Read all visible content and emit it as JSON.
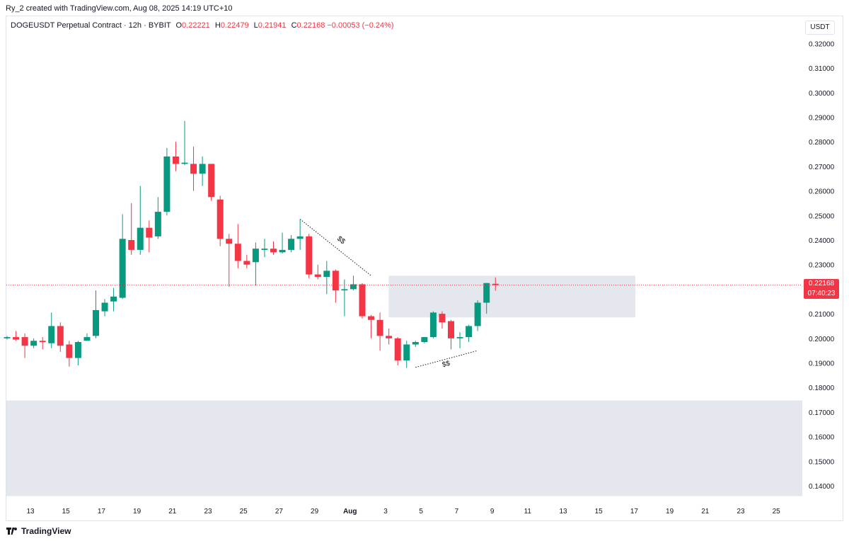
{
  "header": {
    "credit": "Ry_2 created with TradingView.com, Aug 08, 2025 14:19 UTC+10",
    "symbol": "DOGEUSDT Perpetual Contract · 12h · BYBIT",
    "open_label": "O",
    "open": "0.22221",
    "high_label": "H",
    "high": "0.22479",
    "low_label": "L",
    "low": "0.21941",
    "close_label": "C",
    "close": "0.22168",
    "change": "−0.00053 (−0.24%)"
  },
  "axis": {
    "currency": "USDT"
  },
  "last_price": {
    "value": "0.22168",
    "countdown": "07:40:23"
  },
  "footer": {
    "brand": "TradingView"
  },
  "colors": {
    "up": "#089981",
    "down": "#f23645",
    "zone": "#e0e3eb",
    "grid": "#ffffff"
  },
  "chart_data": {
    "type": "candlestick",
    "timeframe": "12h",
    "y_ticks": [
      "0.32000",
      "0.31000",
      "0.30000",
      "0.29000",
      "0.28000",
      "0.27000",
      "0.26000",
      "0.25000",
      "0.24000",
      "0.23000",
      "0.21000",
      "0.20000",
      "0.19000",
      "0.18000",
      "0.17000",
      "0.16000",
      "0.15000",
      "0.14000"
    ],
    "x_ticks": [
      "13",
      "15",
      "17",
      "19",
      "21",
      "23",
      "25",
      "27",
      "29",
      "Aug",
      "3",
      "5",
      "7",
      "9",
      "11",
      "13",
      "15",
      "17",
      "19",
      "21",
      "23",
      "25"
    ],
    "ylim": [
      0.1355,
      0.3245
    ],
    "candles": [
      {
        "o": 0.2,
        "h": 0.201,
        "l": 0.1995,
        "c": 0.2005
      },
      {
        "o": 0.2005,
        "h": 0.203,
        "l": 0.199,
        "c": 0.1995
      },
      {
        "o": 0.2005,
        "h": 0.202,
        "l": 0.192,
        "c": 0.197
      },
      {
        "o": 0.197,
        "h": 0.2,
        "l": 0.196,
        "c": 0.199
      },
      {
        "o": 0.199,
        "h": 0.2005,
        "l": 0.1955,
        "c": 0.1985
      },
      {
        "o": 0.198,
        "h": 0.2105,
        "l": 0.196,
        "c": 0.205
      },
      {
        "o": 0.205,
        "h": 0.2065,
        "l": 0.1945,
        "c": 0.197
      },
      {
        "o": 0.1975,
        "h": 0.199,
        "l": 0.1885,
        "c": 0.192
      },
      {
        "o": 0.192,
        "h": 0.199,
        "l": 0.189,
        "c": 0.1985
      },
      {
        "o": 0.199,
        "h": 0.202,
        "l": 0.199,
        "c": 0.2005
      },
      {
        "o": 0.201,
        "h": 0.2195,
        "l": 0.2,
        "c": 0.2115
      },
      {
        "o": 0.211,
        "h": 0.216,
        "l": 0.209,
        "c": 0.2145
      },
      {
        "o": 0.215,
        "h": 0.2205,
        "l": 0.211,
        "c": 0.217
      },
      {
        "o": 0.2165,
        "h": 0.2505,
        "l": 0.216,
        "c": 0.2405
      },
      {
        "o": 0.24,
        "h": 0.255,
        "l": 0.234,
        "c": 0.236
      },
      {
        "o": 0.236,
        "h": 0.262,
        "l": 0.234,
        "c": 0.245
      },
      {
        "o": 0.245,
        "h": 0.248,
        "l": 0.235,
        "c": 0.241
      },
      {
        "o": 0.2415,
        "h": 0.2575,
        "l": 0.2405,
        "c": 0.2515
      },
      {
        "o": 0.2515,
        "h": 0.2775,
        "l": 0.25,
        "c": 0.274
      },
      {
        "o": 0.274,
        "h": 0.28,
        "l": 0.268,
        "c": 0.271
      },
      {
        "o": 0.271,
        "h": 0.2885,
        "l": 0.2705,
        "c": 0.2715
      },
      {
        "o": 0.271,
        "h": 0.278,
        "l": 0.26,
        "c": 0.267
      },
      {
        "o": 0.267,
        "h": 0.274,
        "l": 0.262,
        "c": 0.271
      },
      {
        "o": 0.271,
        "h": 0.271,
        "l": 0.256,
        "c": 0.2575
      },
      {
        "o": 0.2565,
        "h": 0.258,
        "l": 0.2375,
        "c": 0.2405
      },
      {
        "o": 0.2405,
        "h": 0.2425,
        "l": 0.221,
        "c": 0.2385
      },
      {
        "o": 0.2385,
        "h": 0.2465,
        "l": 0.2285,
        "c": 0.2315
      },
      {
        "o": 0.2315,
        "h": 0.234,
        "l": 0.2285,
        "c": 0.23
      },
      {
        "o": 0.231,
        "h": 0.239,
        "l": 0.2215,
        "c": 0.2365
      },
      {
        "o": 0.236,
        "h": 0.2405,
        "l": 0.233,
        "c": 0.2365
      },
      {
        "o": 0.2365,
        "h": 0.2395,
        "l": 0.234,
        "c": 0.235
      },
      {
        "o": 0.235,
        "h": 0.243,
        "l": 0.2345,
        "c": 0.236
      },
      {
        "o": 0.236,
        "h": 0.242,
        "l": 0.235,
        "c": 0.2405
      },
      {
        "o": 0.2405,
        "h": 0.2485,
        "l": 0.236,
        "c": 0.2415
      },
      {
        "o": 0.2415,
        "h": 0.2425,
        "l": 0.2245,
        "c": 0.226
      },
      {
        "o": 0.226,
        "h": 0.23,
        "l": 0.224,
        "c": 0.225
      },
      {
        "o": 0.225,
        "h": 0.2315,
        "l": 0.218,
        "c": 0.2275
      },
      {
        "o": 0.2275,
        "h": 0.228,
        "l": 0.2145,
        "c": 0.2195
      },
      {
        "o": 0.2195,
        "h": 0.224,
        "l": 0.209,
        "c": 0.22
      },
      {
        "o": 0.22,
        "h": 0.2255,
        "l": 0.2195,
        "c": 0.222
      },
      {
        "o": 0.222,
        "h": 0.2225,
        "l": 0.208,
        "c": 0.209
      },
      {
        "o": 0.209,
        "h": 0.2095,
        "l": 0.2,
        "c": 0.2075
      },
      {
        "o": 0.2075,
        "h": 0.2105,
        "l": 0.195,
        "c": 0.201
      },
      {
        "o": 0.201,
        "h": 0.204,
        "l": 0.1975,
        "c": 0.2
      },
      {
        "o": 0.2,
        "h": 0.2005,
        "l": 0.189,
        "c": 0.191
      },
      {
        "o": 0.191,
        "h": 0.199,
        "l": 0.188,
        "c": 0.1975
      },
      {
        "o": 0.1975,
        "h": 0.199,
        "l": 0.1965,
        "c": 0.1985
      },
      {
        "o": 0.1985,
        "h": 0.2005,
        "l": 0.198,
        "c": 0.2005
      },
      {
        "o": 0.2005,
        "h": 0.211,
        "l": 0.2,
        "c": 0.2105
      },
      {
        "o": 0.21,
        "h": 0.211,
        "l": 0.204,
        "c": 0.2065
      },
      {
        "o": 0.207,
        "h": 0.2075,
        "l": 0.1955,
        "c": 0.2
      },
      {
        "o": 0.2,
        "h": 0.2025,
        "l": 0.196,
        "c": 0.2005
      },
      {
        "o": 0.2005,
        "h": 0.2055,
        "l": 0.1985,
        "c": 0.205
      },
      {
        "o": 0.205,
        "h": 0.2155,
        "l": 0.203,
        "c": 0.2145
      },
      {
        "o": 0.2145,
        "h": 0.2225,
        "l": 0.21,
        "c": 0.2225
      },
      {
        "o": 0.2222,
        "h": 0.2248,
        "l": 0.2194,
        "c": 0.2217
      }
    ],
    "zones": [
      {
        "from_candle": 42.5,
        "to_date_index": 71,
        "y_high": 0.2255,
        "y_low": 0.2085
      },
      {
        "full_width": true,
        "y_high": 0.1747,
        "y_low": 0.1358
      }
    ],
    "annotations": [
      {
        "label": "$$",
        "from": {
          "i": 33,
          "y": 0.2485
        },
        "to": {
          "i": 41,
          "y": 0.2255
        }
      },
      {
        "label": "$$",
        "from": {
          "i": 46,
          "y": 0.1882
        },
        "to": {
          "i": 53,
          "y": 0.195
        }
      }
    ],
    "last_price_line": 0.22168
  }
}
